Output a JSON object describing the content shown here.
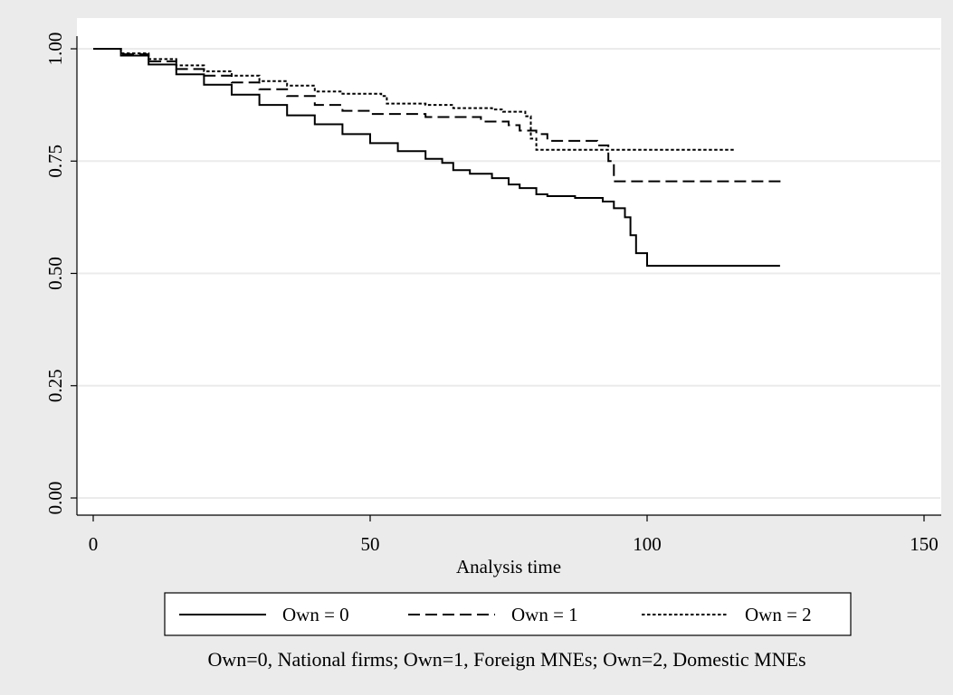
{
  "chart_data": {
    "type": "line",
    "title": "",
    "xlabel": "Analysis time",
    "ylabel": "",
    "xlim": [
      0,
      150
    ],
    "ylim": [
      0,
      1
    ],
    "x_ticks": [
      0,
      50,
      100,
      150
    ],
    "x_tick_labels": [
      "0",
      "50",
      "100",
      "150"
    ],
    "y_ticks": [
      0,
      0.25,
      0.5,
      0.75,
      1
    ],
    "y_tick_labels": [
      "0.00",
      "0.25",
      "0.50",
      "0.75",
      "1.00"
    ],
    "grid": "horizontal",
    "legend_position": "bottom",
    "note": "Own=0, National firms; Own=1, Foreign MNEs; Own=2, Domestic MNEs",
    "colors": {
      "background": "#ebebeb",
      "plot_area": "#ffffff",
      "grid": "#ebebeb",
      "line": "#000000"
    },
    "series": [
      {
        "name": "Own = 0",
        "dash": "solid",
        "points": [
          [
            0,
            1.0
          ],
          [
            5,
            0.985
          ],
          [
            10,
            0.965
          ],
          [
            15,
            0.943
          ],
          [
            20,
            0.92
          ],
          [
            25,
            0.898
          ],
          [
            30,
            0.875
          ],
          [
            35,
            0.852
          ],
          [
            40,
            0.832
          ],
          [
            45,
            0.81
          ],
          [
            50,
            0.79
          ],
          [
            55,
            0.772
          ],
          [
            60,
            0.755
          ],
          [
            63,
            0.746
          ],
          [
            65,
            0.73
          ],
          [
            68,
            0.722
          ],
          [
            72,
            0.712
          ],
          [
            75,
            0.698
          ],
          [
            77,
            0.69
          ],
          [
            80,
            0.676
          ],
          [
            82,
            0.672
          ],
          [
            87,
            0.668
          ],
          [
            92,
            0.66
          ],
          [
            94,
            0.645
          ],
          [
            96,
            0.625
          ],
          [
            97,
            0.585
          ],
          [
            98,
            0.545
          ],
          [
            100,
            0.517
          ],
          [
            124,
            0.517
          ]
        ]
      },
      {
        "name": "Own = 1",
        "dash": "long-dash",
        "points": [
          [
            0,
            1.0
          ],
          [
            5,
            0.988
          ],
          [
            10,
            0.972
          ],
          [
            15,
            0.955
          ],
          [
            20,
            0.94
          ],
          [
            25,
            0.925
          ],
          [
            30,
            0.91
          ],
          [
            35,
            0.895
          ],
          [
            40,
            0.875
          ],
          [
            45,
            0.862
          ],
          [
            50,
            0.855
          ],
          [
            60,
            0.848
          ],
          [
            70,
            0.838
          ],
          [
            75,
            0.83
          ],
          [
            77,
            0.818
          ],
          [
            80,
            0.81
          ],
          [
            82,
            0.795
          ],
          [
            88,
            0.795
          ],
          [
            91,
            0.785
          ],
          [
            93,
            0.75
          ],
          [
            94,
            0.705
          ],
          [
            125,
            0.705
          ]
        ]
      },
      {
        "name": "Own = 2",
        "dash": "short-dash",
        "points": [
          [
            0,
            1.0
          ],
          [
            5,
            0.99
          ],
          [
            10,
            0.977
          ],
          [
            15,
            0.963
          ],
          [
            20,
            0.95
          ],
          [
            25,
            0.94
          ],
          [
            30,
            0.928
          ],
          [
            35,
            0.918
          ],
          [
            40,
            0.905
          ],
          [
            45,
            0.9
          ],
          [
            52,
            0.895
          ],
          [
            53,
            0.878
          ],
          [
            60,
            0.875
          ],
          [
            65,
            0.868
          ],
          [
            72,
            0.865
          ],
          [
            74,
            0.86
          ],
          [
            78,
            0.85
          ],
          [
            79,
            0.8
          ],
          [
            80,
            0.775
          ],
          [
            90,
            0.775
          ],
          [
            92,
            0.775
          ],
          [
            116,
            0.775
          ]
        ]
      }
    ]
  }
}
